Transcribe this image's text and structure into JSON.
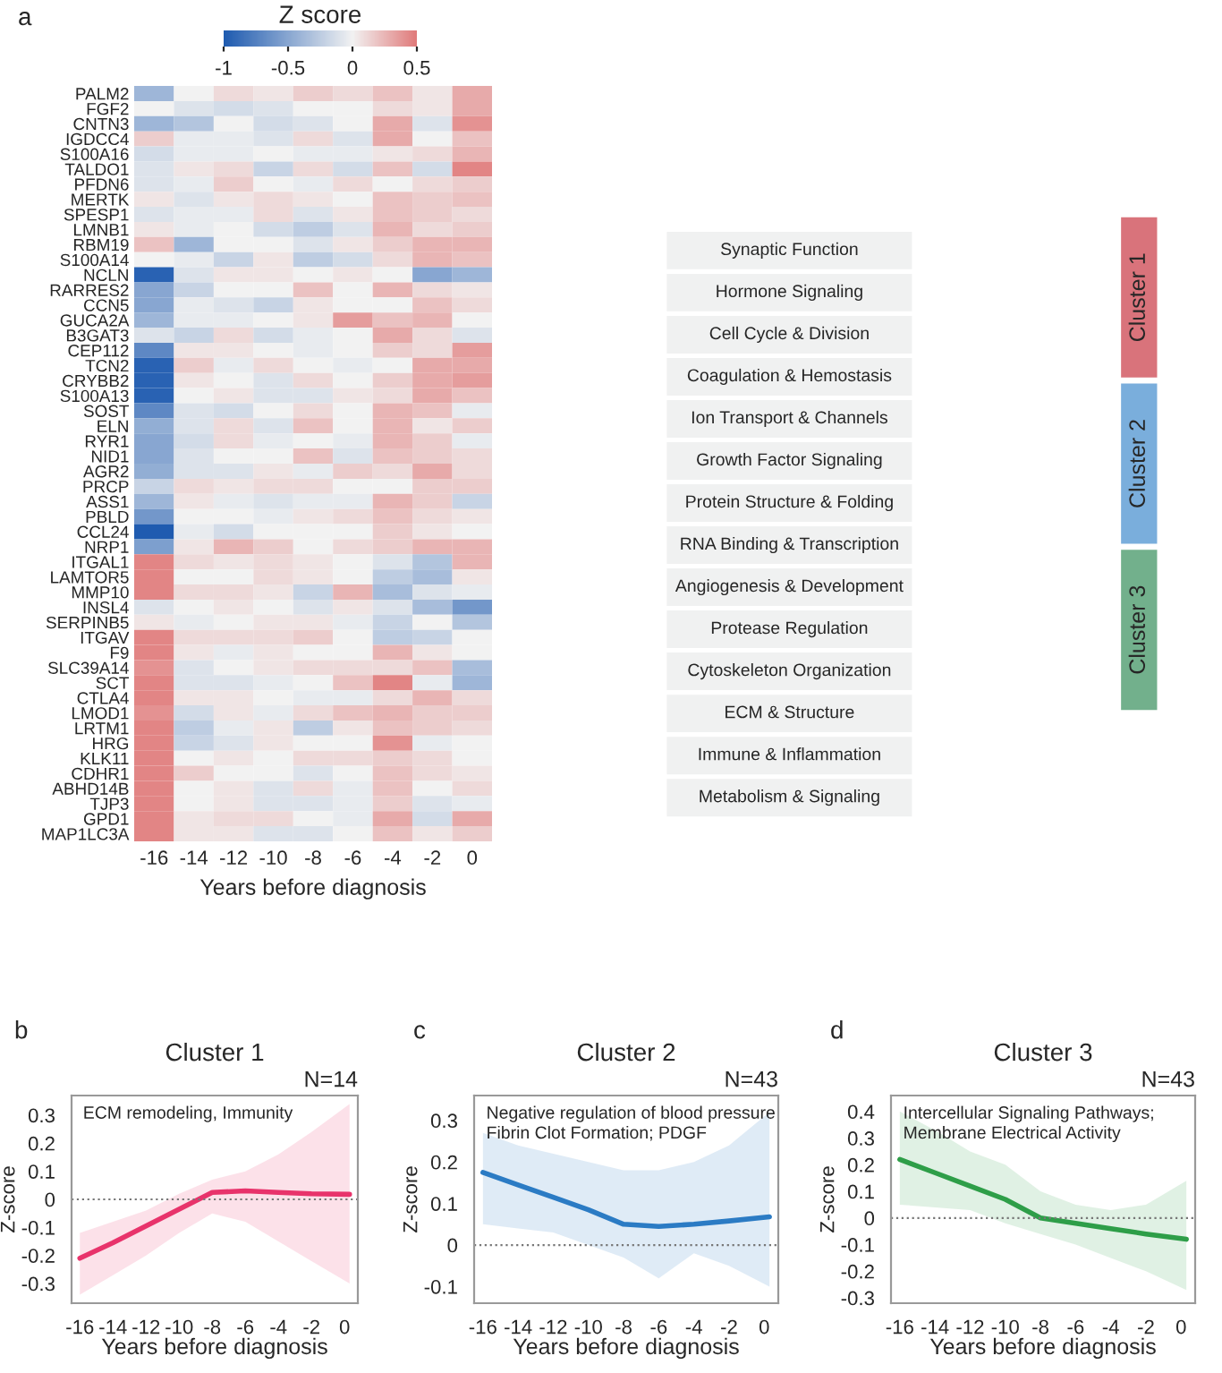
{
  "chart_data": [
    {
      "type": "heatmap",
      "annotations": [
        "a"
      ],
      "xlabel": "Years before diagnosis",
      "clabel": "Z score",
      "clim": [
        -1,
        0.5
      ],
      "cticks": [
        -1,
        -0.5,
        0,
        0.5
      ],
      "categories": [
        "-16",
        "-14",
        "-12",
        "-10",
        "-8",
        "-6",
        "-4",
        "-2",
        "0"
      ],
      "y_categories": [
        "PALM2",
        "FGF2",
        "CNTN3",
        "IGDCC4",
        "S100A16",
        "TALDO1",
        "PFDN6",
        "MERTK",
        "SPESP1",
        "LMNB1",
        "RBM19",
        "S100A14",
        "NCLN",
        "RARRES2",
        "CCN5",
        "GUCA2A",
        "B3GAT3",
        "CEP112",
        "TCN2",
        "CRYBB2",
        "S100A13",
        "SOST",
        "ELN",
        "RYR1",
        "NID1",
        "AGR2",
        "PRCP",
        "ASS1",
        "PBLD",
        "CCL24",
        "NRP1",
        "ITGAL1",
        "LAMTOR5",
        "MMP10",
        "INSL4",
        "SERPINB5",
        "ITGAV",
        "F9",
        "SLC39A14",
        "SCT",
        "CTLA4",
        "LMOD1",
        "LRTM1",
        "HRG",
        "KLK11",
        "CDHR1",
        "ABHD14B",
        "TJP3",
        "GPD1",
        "MAP1LC3A"
      ],
      "cells": [
        [
          -0.4,
          0,
          0.1,
          0.05,
          0.15,
          0.1,
          0.2,
          0.05,
          0.3
        ],
        [
          0,
          -0.1,
          -0.15,
          -0.1,
          0,
          0,
          0.1,
          0.05,
          0.3
        ],
        [
          -0.4,
          -0.3,
          0,
          -0.15,
          -0.1,
          0,
          0.3,
          -0.1,
          0.4
        ],
        [
          0.15,
          -0.05,
          -0.05,
          -0.1,
          0.1,
          -0.1,
          0.3,
          0,
          0.2
        ],
        [
          -0.15,
          -0.05,
          -0.05,
          0,
          -0.05,
          -0.05,
          0.05,
          0.1,
          0.25
        ],
        [
          -0.1,
          0.05,
          0.1,
          -0.2,
          0.1,
          -0.15,
          0.2,
          -0.15,
          0.45
        ],
        [
          -0.1,
          -0.05,
          0.15,
          0,
          -0.05,
          0.1,
          0,
          0.1,
          0.15
        ],
        [
          0.05,
          -0.1,
          0.05,
          0.1,
          0.05,
          0,
          0.2,
          0.15,
          0.2
        ],
        [
          -0.1,
          -0.05,
          -0.05,
          0.1,
          -0.1,
          0.05,
          0.2,
          0.15,
          0.1
        ],
        [
          0.05,
          -0.05,
          0,
          -0.15,
          -0.25,
          -0.1,
          0.25,
          0.1,
          0.15
        ],
        [
          0.2,
          -0.4,
          0,
          0,
          -0.1,
          0.05,
          0.15,
          0.25,
          0.25
        ],
        [
          0,
          -0.05,
          -0.2,
          0.05,
          -0.25,
          -0.15,
          0.1,
          0.25,
          0.2
        ],
        [
          -0.95,
          -0.1,
          0.05,
          0.05,
          0,
          0.05,
          0,
          -0.5,
          -0.4
        ],
        [
          -0.5,
          -0.2,
          0,
          0,
          0.2,
          0,
          0.25,
          0.1,
          0.05
        ],
        [
          -0.5,
          -0.05,
          -0.1,
          -0.2,
          0.05,
          0,
          0,
          0.2,
          0.1
        ],
        [
          -0.4,
          -0.05,
          -0.05,
          0,
          0.05,
          0.35,
          0.2,
          0.25,
          0
        ],
        [
          -0.1,
          -0.2,
          0.1,
          -0.15,
          -0.05,
          0,
          0.3,
          0.1,
          -0.1
        ],
        [
          -0.7,
          0.05,
          0.05,
          0,
          -0.05,
          0,
          0.15,
          0.1,
          0.35
        ],
        [
          -0.95,
          0.15,
          -0.05,
          0.1,
          0,
          -0.05,
          0,
          0.3,
          0.3
        ],
        [
          -0.95,
          0.05,
          0,
          -0.1,
          0.1,
          0,
          0.15,
          0.3,
          0.35
        ],
        [
          -0.95,
          0,
          0.05,
          -0.1,
          -0.1,
          0.05,
          0.1,
          0.3,
          0.2
        ],
        [
          -0.7,
          -0.1,
          -0.15,
          0,
          0.1,
          0,
          0.25,
          0.2,
          -0.05
        ],
        [
          -0.45,
          -0.1,
          0.1,
          -0.1,
          0.2,
          0,
          0.25,
          0.05,
          0.15
        ],
        [
          -0.5,
          -0.15,
          0.1,
          -0.05,
          0,
          -0.05,
          0.25,
          0.15,
          -0.05
        ],
        [
          -0.5,
          -0.1,
          0,
          0,
          0.2,
          -0.1,
          0.2,
          0.15,
          0.1
        ],
        [
          -0.45,
          -0.1,
          -0.1,
          0.05,
          -0.05,
          0.15,
          0.1,
          0.3,
          0.1
        ],
        [
          -0.2,
          0.1,
          0.05,
          0.1,
          0.1,
          0,
          0,
          0.15,
          0.15
        ],
        [
          -0.4,
          0.05,
          -0.05,
          -0.1,
          -0.05,
          -0.05,
          0.25,
          0.15,
          -0.2
        ],
        [
          -0.6,
          0,
          0,
          -0.05,
          0.05,
          0.1,
          0.2,
          0.1,
          0.05
        ],
        [
          -1.0,
          -0.05,
          -0.15,
          0,
          0,
          0,
          0.15,
          0.05,
          0
        ],
        [
          -0.55,
          0.05,
          0.25,
          0.15,
          0,
          0.1,
          0.15,
          0.25,
          0.25
        ],
        [
          0.45,
          0.1,
          0.05,
          0.1,
          0.05,
          0,
          -0.1,
          -0.3,
          0.25
        ],
        [
          0.45,
          0,
          0,
          0.1,
          0.05,
          0,
          -0.25,
          -0.35,
          0.05
        ],
        [
          0.45,
          0.1,
          0.1,
          0.05,
          -0.2,
          0.25,
          -0.35,
          -0.1,
          -0.05
        ],
        [
          -0.1,
          0,
          0.05,
          0,
          -0.1,
          0.05,
          -0.1,
          -0.35,
          -0.6
        ],
        [
          0.05,
          -0.05,
          0,
          0.05,
          0.05,
          -0.05,
          -0.2,
          0,
          -0.3
        ],
        [
          0.45,
          0.1,
          0.1,
          0.1,
          0.15,
          0,
          -0.25,
          -0.2,
          0
        ],
        [
          0.45,
          0.05,
          -0.05,
          0.05,
          0,
          0,
          0.25,
          0.05,
          0
        ],
        [
          0.4,
          -0.1,
          0,
          0.05,
          0.1,
          0.1,
          0.1,
          0.2,
          -0.35
        ],
        [
          0.45,
          -0.1,
          -0.1,
          -0.05,
          0,
          0.2,
          0.45,
          -0.05,
          -0.4
        ],
        [
          0.45,
          0.05,
          0.05,
          0,
          -0.05,
          -0.05,
          0.1,
          0.25,
          0.1
        ],
        [
          0.4,
          -0.15,
          0.05,
          -0.05,
          0.1,
          0.2,
          0.25,
          0.15,
          0.15
        ],
        [
          0.45,
          -0.25,
          -0.05,
          0.05,
          -0.25,
          0.05,
          0.2,
          0.15,
          0.1
        ],
        [
          0.45,
          -0.2,
          -0.1,
          0.05,
          0,
          0,
          0.4,
          -0.05,
          0
        ],
        [
          0.45,
          0,
          0.05,
          0,
          0.1,
          0.1,
          0.15,
          0.1,
          0
        ],
        [
          0.45,
          0.15,
          0,
          0,
          -0.1,
          0,
          0.2,
          0.1,
          0.05
        ],
        [
          0.45,
          0,
          0.05,
          -0.1,
          0.1,
          -0.05,
          0.2,
          0,
          0.1
        ],
        [
          0.45,
          0,
          0.05,
          -0.1,
          -0.1,
          -0.05,
          0.15,
          -0.1,
          -0.05
        ],
        [
          0.45,
          0.05,
          0.1,
          0.1,
          0,
          -0.05,
          0.3,
          -0.15,
          0.3
        ],
        [
          0.45,
          0.05,
          0.05,
          -0.1,
          -0.1,
          0,
          0.2,
          0.05,
          0.15
        ]
      ]
    },
    {
      "type": "other",
      "categories": [
        "Cluster 1",
        "Cluster 2",
        "Cluster 3"
      ],
      "colors": [
        "#d9737b",
        "#7aaedc",
        "#72b08c"
      ],
      "annotations": [
        "Synaptic Function",
        "Hormone Signaling",
        "Cell Cycle & Division",
        "Coagulation & Hemostasis",
        "Ion Transport & Channels",
        "Growth Factor Signaling",
        "Protein Structure & Folding",
        "RNA Binding & Transcription",
        "Angiogenesis & Development",
        "Protease Regulation",
        "Cytoskeleton Organization",
        "ECM & Structure",
        "Immune & Inflammation",
        "Metabolism & Signaling"
      ]
    },
    {
      "type": "line",
      "title": "Cluster 1",
      "annotations": [
        "b",
        "N=14",
        "ECM remodeling, Immunity"
      ],
      "xlabel": "Years before diagnosis",
      "ylabel": "Z-score",
      "x": [
        -16,
        -14,
        -12,
        -10,
        -8,
        -6,
        -4,
        -2,
        0.3
      ],
      "xlim": [
        -16.5,
        0.8
      ],
      "xticks": [
        -16,
        -14,
        -12,
        -10,
        -8,
        -6,
        -4,
        -2,
        0
      ],
      "ylim": [
        -0.37,
        0.37
      ],
      "yticks": [
        -0.3,
        -0.2,
        -0.1,
        0,
        0.1,
        0.2,
        0.3
      ],
      "ref_lines": [
        {
          "axis": "y",
          "value": 0,
          "color": "#777777",
          "line_style": "dotted"
        }
      ],
      "series": [
        {
          "color": "#e8336b",
          "values": [
            -0.21,
            -0.155,
            -0.095,
            -0.035,
            0.025,
            0.03,
            0.025,
            0.02,
            0.018
          ],
          "lower": [
            -0.34,
            -0.27,
            -0.2,
            -0.12,
            -0.05,
            -0.08,
            -0.15,
            -0.22,
            -0.3
          ],
          "upper": [
            -0.12,
            -0.08,
            -0.04,
            0.02,
            0.07,
            0.1,
            0.16,
            0.24,
            0.34
          ]
        }
      ]
    },
    {
      "type": "line",
      "title": "Cluster 2",
      "annotations": [
        "c",
        "N=43",
        "Negative regulation of blood pressure\nFibrin Clot Formation; PDGF"
      ],
      "xlabel": "Years before diagnosis",
      "ylabel": "Z-score",
      "x": [
        -16,
        -14,
        -12,
        -10,
        -8,
        -6,
        -4,
        -2,
        0.3
      ],
      "xlim": [
        -16.5,
        0.8
      ],
      "xticks": [
        -16,
        -14,
        -12,
        -10,
        -8,
        -6,
        -4,
        -2,
        0
      ],
      "ylim": [
        -0.14,
        0.36
      ],
      "yticks": [
        -0.1,
        0,
        0.1,
        0.2,
        0.3
      ],
      "ref_lines": [
        {
          "axis": "y",
          "value": 0,
          "color": "#777777",
          "line_style": "dotted"
        }
      ],
      "series": [
        {
          "color": "#2b7bc4",
          "values": [
            0.175,
            0.145,
            0.115,
            0.085,
            0.05,
            0.045,
            0.05,
            0.058,
            0.068
          ],
          "lower": [
            0.05,
            0.04,
            0.03,
            0.0,
            -0.03,
            -0.08,
            -0.02,
            -0.05,
            -0.1
          ],
          "upper": [
            0.27,
            0.24,
            0.22,
            0.2,
            0.18,
            0.18,
            0.2,
            0.24,
            0.32
          ]
        }
      ]
    },
    {
      "type": "line",
      "title": "Cluster 3",
      "annotations": [
        "d",
        "N=43",
        "Intercellular Signaling Pathways;\nMembrane Electrical Activity"
      ],
      "xlabel": "Years before diagnosis",
      "ylabel": "Z-score",
      "x": [
        -16,
        -14,
        -12,
        -10,
        -8,
        -6,
        -4,
        -2,
        0.3
      ],
      "xlim": [
        -16.5,
        0.8
      ],
      "xticks": [
        -16,
        -14,
        -12,
        -10,
        -8,
        -6,
        -4,
        -2,
        0
      ],
      "ylim": [
        -0.32,
        0.46
      ],
      "yticks": [
        -0.3,
        -0.2,
        -0.1,
        0,
        0.1,
        0.2,
        0.3,
        0.4
      ],
      "ref_lines": [
        {
          "axis": "y",
          "value": 0,
          "color": "#777777",
          "line_style": "dotted"
        }
      ],
      "series": [
        {
          "color": "#2e9e48",
          "values": [
            0.22,
            0.17,
            0.12,
            0.07,
            0.0,
            -0.02,
            -0.04,
            -0.06,
            -0.08
          ],
          "lower": [
            0.05,
            0.04,
            0.03,
            -0.02,
            -0.06,
            -0.1,
            -0.15,
            -0.2,
            -0.27
          ],
          "upper": [
            0.4,
            0.33,
            0.25,
            0.2,
            0.1,
            0.05,
            0.03,
            0.05,
            0.14
          ]
        }
      ]
    }
  ]
}
